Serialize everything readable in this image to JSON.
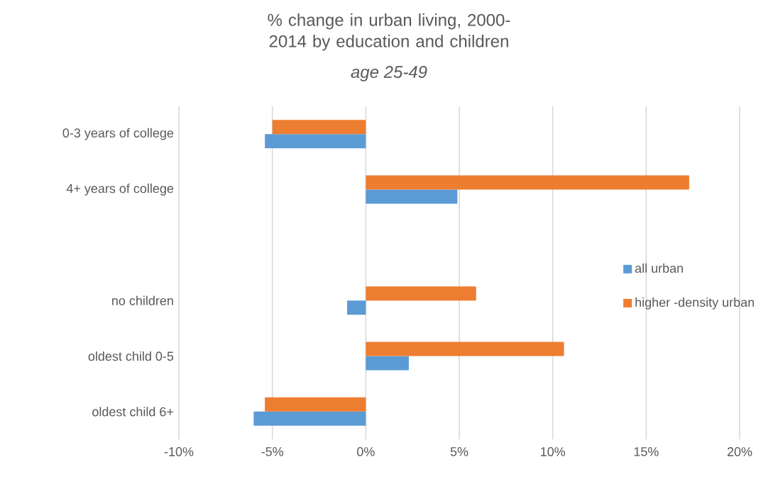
{
  "chart_data": {
    "type": "bar",
    "orientation": "horizontal",
    "title": "% change in urban living, 2000-2014 by education and children",
    "subtitle": "age 25-49",
    "categories": [
      "0-3 years of college",
      "4+ years of college",
      null,
      "no children",
      "oldest child 0-5",
      "oldest child 6+"
    ],
    "series": [
      {
        "name": "all urban",
        "color": "#5b9bd5",
        "values": [
          -5.4,
          4.9,
          null,
          -1.0,
          2.3,
          -6.0
        ]
      },
      {
        "name": "higher -density urban",
        "color": "#ed7d31",
        "values": [
          -5.0,
          17.3,
          null,
          5.9,
          10.6,
          -5.4
        ]
      }
    ],
    "xlim": [
      -10,
      20
    ],
    "xticks": [
      {
        "value": -10,
        "label": "-10%"
      },
      {
        "value": -5,
        "label": "-5%"
      },
      {
        "value": 0,
        "label": "0%"
      },
      {
        "value": 5,
        "label": "5%"
      },
      {
        "value": 10,
        "label": "10%"
      },
      {
        "value": 15,
        "label": "15%"
      },
      {
        "value": 20,
        "label": "20%"
      }
    ],
    "grid": "x",
    "legend": "right"
  }
}
